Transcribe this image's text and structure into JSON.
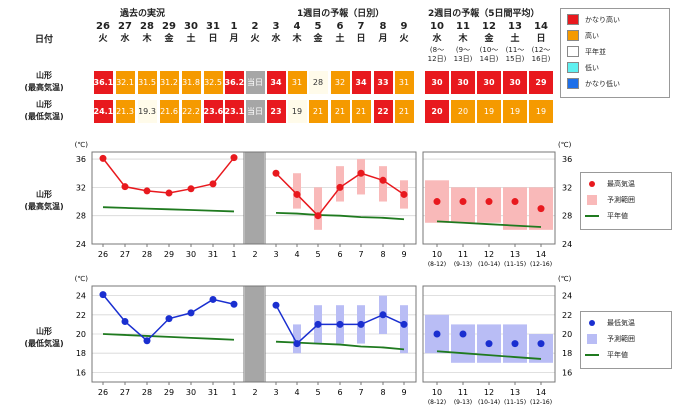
{
  "header": {
    "date_label": "日付",
    "sections": [
      "過去の実況",
      "1週目の予報（日別）",
      "2週目の予報（5日間平均）"
    ]
  },
  "rows": {
    "high_label": [
      "山形",
      "(最高気温)"
    ],
    "low_label": [
      "山形",
      "(最低気温)"
    ]
  },
  "days_past": [
    {
      "d": "26",
      "w": "火"
    },
    {
      "d": "27",
      "w": "水"
    },
    {
      "d": "28",
      "w": "木"
    },
    {
      "d": "29",
      "w": "金"
    },
    {
      "d": "30",
      "w": "土"
    },
    {
      "d": "31",
      "w": "日"
    },
    {
      "d": "1",
      "w": "月"
    },
    {
      "d": "2",
      "w": "火"
    }
  ],
  "days_week1": [
    {
      "d": "3",
      "w": "水"
    },
    {
      "d": "4",
      "w": "木"
    },
    {
      "d": "5",
      "w": "金"
    },
    {
      "d": "6",
      "w": "土"
    },
    {
      "d": "7",
      "w": "日"
    },
    {
      "d": "8",
      "w": "月"
    },
    {
      "d": "9",
      "w": "火"
    }
  ],
  "days_week2": [
    {
      "d": "10",
      "w": "水",
      "r1": "(8〜",
      "r2": "12日)"
    },
    {
      "d": "11",
      "w": "木",
      "r1": "(9〜",
      "r2": "13日)"
    },
    {
      "d": "12",
      "w": "金",
      "r1": "(10〜",
      "r2": "14日)"
    },
    {
      "d": "13",
      "w": "土",
      "r1": "(11〜",
      "r2": "15日)"
    },
    {
      "d": "14",
      "w": "日",
      "r1": "(12〜",
      "r2": "16日)"
    }
  ],
  "table": {
    "high": [
      {
        "v": "36.1",
        "c": "r"
      },
      {
        "v": "32.1",
        "c": "o"
      },
      {
        "v": "31.5",
        "c": "o"
      },
      {
        "v": "31.2",
        "c": "o"
      },
      {
        "v": "31.8",
        "c": "o"
      },
      {
        "v": "32.5",
        "c": "o"
      },
      {
        "v": "36.2",
        "c": "r"
      },
      {
        "v": "当日",
        "c": "g"
      },
      {
        "v": "34",
        "c": "r"
      },
      {
        "v": "31",
        "c": "o"
      },
      {
        "v": "28",
        "c": "w"
      },
      {
        "v": "32",
        "c": "o"
      },
      {
        "v": "34",
        "c": "r"
      },
      {
        "v": "33",
        "c": "r"
      },
      {
        "v": "31",
        "c": "o"
      },
      {
        "v": "30",
        "c": "r"
      },
      {
        "v": "30",
        "c": "r"
      },
      {
        "v": "30",
        "c": "r"
      },
      {
        "v": "30",
        "c": "r"
      },
      {
        "v": "29",
        "c": "r"
      }
    ],
    "low": [
      {
        "v": "24.1",
        "c": "r"
      },
      {
        "v": "21.3",
        "c": "o"
      },
      {
        "v": "19.3",
        "c": "w"
      },
      {
        "v": "21.6",
        "c": "o"
      },
      {
        "v": "22.2",
        "c": "o"
      },
      {
        "v": "23.6",
        "c": "r"
      },
      {
        "v": "23.1",
        "c": "r"
      },
      {
        "v": "当日",
        "c": "g"
      },
      {
        "v": "23",
        "c": "r"
      },
      {
        "v": "19",
        "c": "w"
      },
      {
        "v": "21",
        "c": "o"
      },
      {
        "v": "21",
        "c": "o"
      },
      {
        "v": "21",
        "c": "o"
      },
      {
        "v": "22",
        "c": "r"
      },
      {
        "v": "21",
        "c": "o"
      },
      {
        "v": "20",
        "c": "r"
      },
      {
        "v": "20",
        "c": "o"
      },
      {
        "v": "19",
        "c": "o"
      },
      {
        "v": "19",
        "c": "o"
      },
      {
        "v": "19",
        "c": "o"
      }
    ]
  },
  "color_legend": [
    {
      "label": "かなり高い",
      "color": "#e8191e"
    },
    {
      "label": "高い",
      "color": "#f59a00"
    },
    {
      "label": "平年並",
      "color": "#ffffff"
    },
    {
      "label": "低い",
      "color": "#5ff0f0"
    },
    {
      "label": "かなり低い",
      "color": "#1e6fe8"
    }
  ],
  "colors": {
    "r": "#e8191e",
    "o": "#f59a00",
    "w": "#fffbea",
    "g": "#a6a6a6",
    "high_series": "#e8191e",
    "low_series": "#1a2fd0",
    "normal": "#1f7a1f",
    "range_high": "#f9b9b9",
    "range_low": "#b9bdf5"
  },
  "chart_legends": {
    "high": [
      "最高気温",
      "予測範囲",
      "平年値"
    ],
    "low": [
      "最低気温",
      "予測範囲",
      "平年値"
    ]
  },
  "chart_data": [
    {
      "type": "line",
      "title": "山形 (最高気温)",
      "unit_label": "(℃)",
      "ylim": [
        24,
        37
      ],
      "yticks": [
        24,
        28,
        32,
        36
      ],
      "x_past": [
        "26",
        "27",
        "28",
        "29",
        "30",
        "31",
        "1"
      ],
      "past_values": [
        36.1,
        32.1,
        31.5,
        31.2,
        31.8,
        32.5,
        36.2
      ],
      "x_week1": [
        "3",
        "4",
        "5",
        "6",
        "7",
        "8",
        "9"
      ],
      "week1_values": [
        34,
        31,
        28,
        32,
        34,
        33,
        31
      ],
      "week1_range": [
        [
          34,
          34
        ],
        [
          29,
          34
        ],
        [
          26,
          32
        ],
        [
          30,
          35
        ],
        [
          31,
          36
        ],
        [
          30,
          35
        ],
        [
          29,
          33
        ]
      ],
      "x_week2": [
        "10",
        "11",
        "12",
        "13",
        "14"
      ],
      "x_week2_sub": [
        "(8-12)",
        "(9-13)",
        "(10-14)",
        "(11-15)",
        "(12-16)"
      ],
      "week2_values": [
        30,
        30,
        30,
        30,
        29
      ],
      "week2_range": [
        [
          27,
          33
        ],
        [
          27,
          32
        ],
        [
          27,
          32
        ],
        [
          26,
          32
        ],
        [
          26,
          32
        ]
      ],
      "normal_past": [
        29.2,
        29.1,
        29.0,
        28.9,
        28.8,
        28.7,
        28.6
      ],
      "normal_week1": [
        28.4,
        28.3,
        28.1,
        28.0,
        27.8,
        27.7,
        27.5
      ],
      "normal_week2": [
        27.2,
        27.0,
        26.8,
        26.6,
        26.4
      ]
    },
    {
      "type": "line",
      "title": "山形 (最低気温)",
      "unit_label": "(℃)",
      "ylim": [
        15,
        25
      ],
      "yticks": [
        16,
        18,
        20,
        22,
        24
      ],
      "x_past": [
        "26",
        "27",
        "28",
        "29",
        "30",
        "31",
        "1"
      ],
      "past_values": [
        24.1,
        21.3,
        19.3,
        21.6,
        22.2,
        23.6,
        23.1
      ],
      "x_week1": [
        "3",
        "4",
        "5",
        "6",
        "7",
        "8",
        "9"
      ],
      "week1_values": [
        23,
        19,
        21,
        21,
        21,
        22,
        21
      ],
      "week1_range": [
        [
          23,
          23
        ],
        [
          18,
          21
        ],
        [
          19,
          23
        ],
        [
          19,
          23
        ],
        [
          19,
          23
        ],
        [
          20,
          24
        ],
        [
          18,
          23
        ]
      ],
      "x_week2": [
        "10",
        "11",
        "12",
        "13",
        "14"
      ],
      "x_week2_sub": [
        "(8-12)",
        "(9-13)",
        "(10-14)",
        "(11-15)",
        "(12-16)"
      ],
      "week2_values": [
        20,
        20,
        19,
        19,
        19
      ],
      "week2_range": [
        [
          18,
          22
        ],
        [
          17,
          21
        ],
        [
          17,
          21
        ],
        [
          17,
          21
        ],
        [
          17,
          20
        ]
      ],
      "normal_past": [
        20.0,
        19.9,
        19.8,
        19.7,
        19.6,
        19.5,
        19.4
      ],
      "normal_week1": [
        19.2,
        19.1,
        19.0,
        18.9,
        18.7,
        18.6,
        18.4
      ],
      "normal_week2": [
        18.2,
        18.0,
        17.8,
        17.6,
        17.4
      ]
    }
  ]
}
